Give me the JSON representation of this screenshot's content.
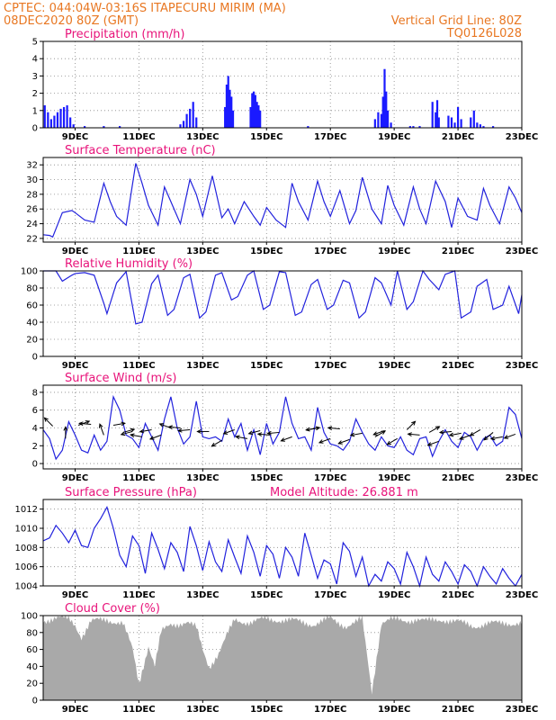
{
  "header": {
    "line1_left": "CPTEC:   044:04W-03:16S   ITAPECURU MIRIM (MA)",
    "line2_left": "08DEC2020 80Z (GMT)",
    "line2_right": "Vertical Grid Line: 80Z",
    "line3_right": "TQ0126L028"
  },
  "colors": {
    "header": "#e87722",
    "title": "#e8137a",
    "line": "#2222dd",
    "bar": "#1a1aff",
    "cloud": "#a9a9a9"
  },
  "x_axis": {
    "day_start": 8.0,
    "day_end": 23.0,
    "tick_days": [
      9,
      11,
      13,
      15,
      17,
      19,
      21,
      23
    ],
    "tick_labels": [
      "9DEC",
      "11DEC",
      "13DEC",
      "15DEC",
      "17DEC",
      "19DEC",
      "21DEC",
      "23DEC"
    ]
  },
  "chart_data": [
    {
      "type": "bar",
      "title": "Precipitation (mm/h)",
      "ylim": [
        0,
        5
      ],
      "yticks": [
        0,
        1,
        2,
        3,
        4,
        5
      ],
      "x": [
        8.05,
        8.15,
        8.25,
        8.35,
        8.45,
        8.55,
        8.65,
        8.75,
        8.85,
        8.95,
        9.3,
        9.9,
        10.4,
        12.3,
        12.4,
        12.5,
        12.6,
        12.7,
        12.8,
        13.7,
        13.75,
        13.8,
        13.85,
        13.9,
        13.95,
        14.5,
        14.55,
        14.6,
        14.65,
        14.7,
        14.75,
        14.8,
        16.3,
        18.4,
        18.5,
        18.6,
        18.65,
        18.7,
        18.75,
        18.8,
        18.9,
        19.5,
        19.6,
        19.8,
        20.2,
        20.3,
        20.35,
        20.4,
        20.7,
        20.8,
        20.9,
        21.0,
        21.1,
        21.4,
        21.5,
        21.6,
        21.7,
        21.8,
        22.1
      ],
      "values": [
        1.3,
        0.9,
        0.5,
        0.7,
        0.9,
        1.1,
        1.2,
        1.3,
        0.6,
        0.2,
        0.1,
        0.1,
        0.1,
        0.2,
        0.4,
        0.8,
        1.1,
        1.5,
        0.6,
        1.2,
        2.5,
        3.0,
        2.2,
        1.8,
        1.0,
        1.2,
        2.0,
        2.1,
        1.9,
        1.5,
        1.3,
        1.0,
        0.1,
        0.5,
        0.9,
        0.8,
        1.8,
        3.4,
        2.1,
        1.0,
        0.3,
        0.1,
        0.1,
        0.1,
        1.5,
        0.9,
        1.6,
        0.6,
        0.7,
        0.6,
        0.3,
        1.2,
        0.5,
        0.6,
        1.0,
        0.3,
        0.2,
        0.1,
        0.1
      ]
    },
    {
      "type": "line",
      "title": "Surface Temperature (nC)",
      "ylim": [
        21.5,
        33
      ],
      "yticks": [
        22,
        24,
        26,
        28,
        30,
        32
      ],
      "x": [
        8.0,
        8.2,
        8.3,
        8.6,
        8.9,
        9.0,
        9.3,
        9.6,
        9.9,
        10.1,
        10.3,
        10.6,
        10.9,
        11.1,
        11.3,
        11.6,
        11.8,
        12.0,
        12.3,
        12.6,
        12.8,
        13.0,
        13.3,
        13.6,
        13.8,
        14.0,
        14.3,
        14.6,
        14.8,
        15.0,
        15.3,
        15.6,
        15.8,
        16.0,
        16.3,
        16.6,
        16.8,
        17.0,
        17.3,
        17.6,
        17.8,
        18.0,
        18.3,
        18.6,
        18.8,
        19.0,
        19.3,
        19.6,
        19.8,
        20.0,
        20.3,
        20.6,
        20.8,
        21.0,
        21.3,
        21.6,
        21.8,
        22.0,
        22.3,
        22.6,
        22.8,
        23.0
      ],
      "values": [
        22.5,
        22.4,
        22.2,
        25.5,
        25.8,
        25.5,
        24.5,
        24.2,
        29.5,
        27.0,
        25.0,
        23.8,
        32.2,
        29.5,
        26.5,
        23.8,
        29.0,
        27.0,
        24.0,
        30.0,
        28.0,
        25.0,
        30.5,
        24.8,
        26.0,
        24.0,
        27.0,
        25.0,
        23.8,
        26.2,
        24.5,
        23.5,
        29.5,
        27.0,
        24.5,
        29.8,
        27.0,
        25.0,
        28.5,
        24.0,
        25.8,
        30.3,
        26.0,
        24.0,
        29.2,
        26.5,
        23.8,
        29.0,
        26.0,
        24.0,
        29.8,
        27.0,
        23.5,
        27.5,
        25.0,
        24.5,
        28.8,
        26.5,
        24.0,
        29.0,
        27.5,
        25.5
      ]
    },
    {
      "type": "line",
      "title": "Relative Humidity (%)",
      "ylim": [
        0,
        100
      ],
      "yticks": [
        0,
        20,
        40,
        60,
        80,
        100
      ],
      "x": [
        8.0,
        8.4,
        8.6,
        8.9,
        9.0,
        9.3,
        9.6,
        9.9,
        10.0,
        10.3,
        10.6,
        10.9,
        11.1,
        11.4,
        11.6,
        11.9,
        12.1,
        12.4,
        12.6,
        12.9,
        13.1,
        13.4,
        13.6,
        13.9,
        14.1,
        14.4,
        14.6,
        14.9,
        15.1,
        15.4,
        15.6,
        15.9,
        16.1,
        16.4,
        16.6,
        16.9,
        17.1,
        17.4,
        17.6,
        17.9,
        18.1,
        18.4,
        18.6,
        18.9,
        19.1,
        19.4,
        19.6,
        19.9,
        20.1,
        20.4,
        20.6,
        20.9,
        21.1,
        21.4,
        21.6,
        21.9,
        22.1,
        22.4,
        22.6,
        22.9,
        23.0
      ],
      "values": [
        100,
        100,
        88,
        95,
        97,
        98,
        95,
        62,
        50,
        86,
        99,
        38,
        40,
        85,
        95,
        48,
        55,
        92,
        96,
        45,
        52,
        95,
        98,
        66,
        70,
        95,
        100,
        55,
        60,
        99,
        98,
        48,
        52,
        84,
        90,
        55,
        60,
        89,
        86,
        45,
        52,
        92,
        86,
        60,
        100,
        55,
        64,
        100,
        90,
        78,
        96,
        100,
        45,
        52,
        82,
        90,
        55,
        60,
        82,
        50,
        72
      ]
    },
    {
      "type": "line",
      "title": "Surface Wind (m/s)",
      "ylim": [
        -0.6,
        8.8
      ],
      "yticks": [
        0,
        2,
        4,
        6,
        8
      ],
      "x": [
        8.0,
        8.2,
        8.4,
        8.6,
        8.8,
        9.0,
        9.2,
        9.4,
        9.6,
        9.8,
        10.0,
        10.2,
        10.4,
        10.6,
        10.8,
        11.0,
        11.2,
        11.4,
        11.6,
        11.8,
        12.0,
        12.2,
        12.4,
        12.6,
        12.8,
        13.0,
        13.2,
        13.4,
        13.6,
        13.8,
        14.0,
        14.2,
        14.4,
        14.6,
        14.8,
        15.0,
        15.2,
        15.4,
        15.6,
        15.8,
        16.0,
        16.2,
        16.4,
        16.6,
        16.8,
        17.0,
        17.2,
        17.4,
        17.6,
        17.8,
        18.0,
        18.2,
        18.4,
        18.6,
        18.8,
        19.0,
        19.2,
        19.4,
        19.6,
        19.8,
        20.0,
        20.2,
        20.4,
        20.6,
        20.8,
        21.0,
        21.2,
        21.4,
        21.6,
        21.8,
        22.0,
        22.2,
        22.4,
        22.6,
        22.8,
        23.0
      ],
      "values": [
        3.8,
        2.8,
        0.5,
        1.5,
        4.7,
        3.2,
        1.5,
        1.2,
        3.2,
        1.5,
        2.5,
        7.5,
        6.0,
        3.2,
        2.8,
        1.8,
        4.5,
        3.0,
        1.5,
        5.0,
        7.5,
        4.0,
        2.2,
        3.0,
        7.0,
        3.0,
        2.8,
        3.0,
        2.5,
        5.0,
        3.0,
        4.5,
        1.5,
        3.8,
        1.0,
        4.5,
        2.2,
        3.5,
        7.5,
        4.5,
        2.8,
        3.0,
        1.5,
        6.3,
        3.5,
        2.2,
        2.0,
        1.5,
        2.5,
        5.0,
        3.5,
        2.2,
        1.5,
        3.0,
        2.0,
        1.8,
        3.0,
        1.5,
        1.0,
        2.8,
        3.0,
        0.8,
        2.5,
        3.8,
        2.5,
        1.8,
        3.5,
        3.0,
        1.5,
        2.8,
        3.2,
        2.0,
        2.5,
        6.3,
        5.5,
        2.8
      ]
    },
    {
      "type": "line",
      "title": "Surface Pressure (hPa)",
      "subtitle": "Model Altitude: 26.881  m",
      "ylim": [
        1004,
        1013
      ],
      "yticks": [
        1004,
        1006,
        1008,
        1010,
        1012
      ],
      "x": [
        8.0,
        8.2,
        8.4,
        8.6,
        8.8,
        9.0,
        9.2,
        9.4,
        9.6,
        9.8,
        10.0,
        10.2,
        10.4,
        10.6,
        10.8,
        11.0,
        11.2,
        11.4,
        11.6,
        11.8,
        12.0,
        12.2,
        12.4,
        12.6,
        12.8,
        13.0,
        13.2,
        13.4,
        13.6,
        13.8,
        14.0,
        14.2,
        14.4,
        14.6,
        14.8,
        15.0,
        15.2,
        15.4,
        15.6,
        15.8,
        16.0,
        16.2,
        16.4,
        16.6,
        16.8,
        17.0,
        17.2,
        17.4,
        17.6,
        17.8,
        18.0,
        18.2,
        18.4,
        18.6,
        18.8,
        19.0,
        19.2,
        19.4,
        19.6,
        19.8,
        20.0,
        20.2,
        20.4,
        20.6,
        20.8,
        21.0,
        21.2,
        21.4,
        21.6,
        21.8,
        22.0,
        22.2,
        22.4,
        22.6,
        22.8,
        23.0
      ],
      "values": [
        1008.7,
        1009.0,
        1010.3,
        1009.5,
        1008.5,
        1009.8,
        1008.2,
        1008.0,
        1010.0,
        1011.0,
        1012.2,
        1010.0,
        1007.2,
        1006.0,
        1009.2,
        1008.2,
        1005.3,
        1009.5,
        1007.8,
        1005.8,
        1008.5,
        1007.5,
        1005.5,
        1010.2,
        1008.2,
        1005.6,
        1008.6,
        1006.5,
        1005.5,
        1008.8,
        1007.0,
        1005.3,
        1009.2,
        1007.5,
        1005.0,
        1008.2,
        1007.3,
        1004.8,
        1008.0,
        1007.0,
        1005.0,
        1009.5,
        1007.2,
        1004.8,
        1006.7,
        1006.3,
        1004.2,
        1008.5,
        1007.6,
        1005.0,
        1007.0,
        1004.0,
        1005.2,
        1004.5,
        1006.5,
        1005.8,
        1004.2,
        1007.5,
        1006.0,
        1004.0,
        1007.0,
        1005.2,
        1004.5,
        1006.5,
        1005.5,
        1004.2,
        1006.2,
        1005.5,
        1004.0,
        1006.0,
        1005.0,
        1004.2,
        1005.8,
        1004.8,
        1004.0,
        1005.2
      ]
    },
    {
      "type": "area",
      "title": "Cloud Cover (%)",
      "ylim": [
        0,
        100
      ],
      "yticks": [
        0,
        20,
        40,
        60,
        80,
        100
      ],
      "x": [
        8.0,
        8.8,
        9.0,
        9.2,
        9.3,
        9.5,
        9.8,
        10.0,
        10.5,
        10.8,
        11.0,
        11.3,
        11.5,
        11.7,
        12.0,
        12.5,
        12.8,
        13.0,
        13.2,
        13.5,
        14.0,
        14.5,
        15.0,
        15.5,
        16.0,
        16.5,
        17.0,
        17.5,
        18.0,
        18.3,
        18.6,
        18.9,
        19.3,
        19.7,
        20.0,
        20.5,
        21.0,
        21.5,
        22.0,
        22.5,
        23.0
      ],
      "values": [
        95,
        97,
        90,
        75,
        80,
        92,
        95,
        96,
        90,
        60,
        20,
        65,
        40,
        80,
        90,
        92,
        85,
        60,
        40,
        55,
        95,
        92,
        96,
        95,
        93,
        90,
        96,
        88,
        95,
        10,
        92,
        95,
        94,
        96,
        93,
        96,
        92,
        88,
        90,
        92,
        90
      ]
    }
  ],
  "wind_arrows": {
    "x": [
      8.3,
      8.7,
      9.1,
      9.5,
      9.9,
      10.2,
      10.5,
      10.8,
      11.1,
      11.4,
      11.7,
      12.0,
      12.3,
      12.6,
      13.2,
      13.6,
      14.0,
      14.4,
      14.8,
      15.1,
      15.4,
      15.8,
      16.3,
      16.6,
      17.0,
      17.3,
      17.6,
      18.0,
      18.4,
      18.7,
      19.1,
      19.4,
      19.8,
      20.1,
      20.4,
      20.8,
      21.1,
      21.4,
      21.7,
      22.1,
      22.4,
      22.8
    ],
    "y": [
      4.2,
      2.8,
      4.3,
      4.4,
      3.2,
      4.3,
      3.5,
      3.6,
      3.0,
      3.8,
      3.2,
      4.0,
      4.0,
      3.8,
      3.6,
      2.6,
      3.8,
      2.8,
      3.7,
      3.2,
      3.5,
      3.0,
      3.8,
      4.0,
      2.8,
      3.9,
      2.7,
      3.4,
      3.0,
      3.7,
      2.8,
      3.8,
      3.2,
      3.5,
      2.5,
      3.6,
      3.4,
      3.2,
      3.8,
      3.5,
      3.0,
      3.3
    ],
    "dir_deg": [
      135,
      90,
      20,
      175,
      110,
      10,
      15,
      195,
      170,
      190,
      200,
      160,
      175,
      185,
      180,
      210,
      200,
      170,
      195,
      175,
      185,
      200,
      10,
      190,
      200,
      175,
      200,
      190,
      30,
      200,
      210,
      45,
      175,
      30,
      200,
      185,
      190,
      200,
      210,
      220,
      190,
      200
    ]
  }
}
